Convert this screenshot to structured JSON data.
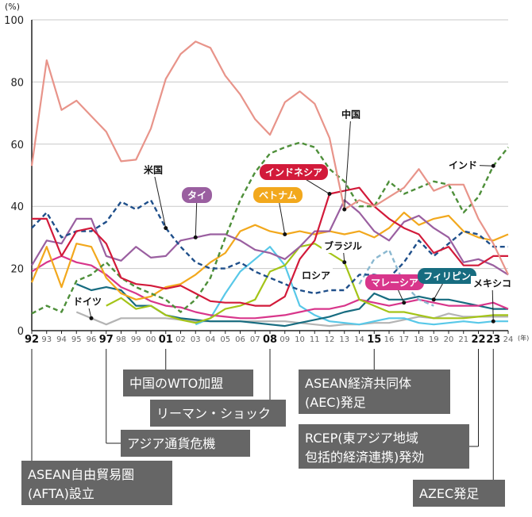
{
  "chart_data": {
    "type": "line",
    "title": "",
    "unit_label": "(%)",
    "year_suffix": "(年)",
    "ylim": [
      0,
      100
    ],
    "yticks": [
      "0",
      "20",
      "40",
      "60",
      "80",
      "100"
    ],
    "yticks_values": [
      0,
      20,
      40,
      60,
      80,
      100
    ],
    "x": [
      "92",
      "93",
      "94",
      "95",
      "96",
      "97",
      "98",
      "99",
      "00",
      "01",
      "02",
      "03",
      "04",
      "05",
      "06",
      "07",
      "08",
      "09",
      "10",
      "11",
      "12",
      "13",
      "14",
      "15",
      "16",
      "17",
      "18",
      "19",
      "20",
      "21",
      "22",
      "23",
      "24"
    ],
    "x_bold": [
      "92",
      "97",
      "01",
      "08",
      "15",
      "22",
      "23"
    ],
    "series": [
      {
        "name": "中国",
        "color": "#e8948a",
        "dash": "solid",
        "label_style": "plain",
        "values": [
          53,
          87,
          71,
          74,
          69,
          64,
          54.5,
          55,
          65,
          81,
          89,
          93,
          91,
          82,
          76,
          68,
          63,
          73.5,
          77,
          73,
          62,
          39,
          42,
          40,
          43,
          46,
          52,
          45,
          47,
          47,
          36,
          28,
          18
        ]
      },
      {
        "name": "米国",
        "color": "#1f4f8a",
        "dash": "dash",
        "label_style": "plain",
        "values": [
          33,
          38,
          30,
          32,
          32,
          35,
          41.5,
          39,
          42,
          33,
          27,
          22,
          20,
          20,
          22,
          19,
          17,
          15,
          13,
          12,
          13,
          13,
          18,
          18,
          17,
          22,
          29,
          24,
          28,
          32,
          31,
          27,
          27
        ]
      },
      {
        "name": "インド",
        "color": "#4e8f3a",
        "dash": "dash",
        "label_style": "plain",
        "values": [
          5.5,
          8,
          6,
          16,
          18,
          22,
          17,
          14,
          12,
          10,
          6,
          10,
          17,
          30,
          42,
          51,
          57,
          59,
          60.5,
          59,
          52,
          48,
          40,
          40,
          48,
          44,
          46,
          48,
          47,
          38,
          43,
          53,
          59
        ]
      },
      {
        "name": "タイ",
        "color": "#9a5fa0",
        "dash": "solid",
        "label_style": "box",
        "values": [
          21,
          29,
          28,
          36,
          36,
          24,
          22.5,
          27,
          23.5,
          24,
          29,
          30,
          31,
          31,
          29,
          26,
          25,
          23,
          27,
          32,
          32,
          42,
          38,
          32,
          29,
          35,
          37,
          33,
          30,
          22,
          23,
          21,
          18
        ]
      },
      {
        "name": "ベトナム",
        "color": "#f2a81d",
        "dash": "solid",
        "label_style": "box",
        "values": [
          15.5,
          27,
          14,
          28,
          27,
          17,
          12,
          10,
          11,
          14,
          15,
          18,
          22,
          25,
          32,
          34,
          32,
          31,
          32,
          31,
          32,
          31,
          32,
          30,
          33,
          38,
          34,
          36,
          37,
          32,
          30,
          29,
          31
        ]
      },
      {
        "name": "インドネシア",
        "color": "#d21a3a",
        "dash": "solid",
        "label_style": "box",
        "values": [
          36,
          36,
          24,
          32,
          33,
          28,
          17,
          15,
          14.5,
          13.5,
          14.5,
          12,
          9.5,
          9,
          9,
          8,
          8,
          11,
          23,
          29,
          44,
          45,
          46,
          40,
          36,
          33,
          31,
          25,
          27,
          21,
          21,
          24,
          24
        ]
      },
      {
        "name": "ブラジル",
        "color": "#a4c418",
        "dash": "solid",
        "label_style": "plain",
        "values": [
          null,
          null,
          null,
          null,
          null,
          8,
          10.5,
          7,
          8,
          5,
          3.5,
          2.5,
          4,
          7,
          8,
          10,
          19,
          21,
          27,
          28,
          25,
          22,
          10,
          8,
          6,
          6,
          5,
          4,
          4,
          4,
          4.5,
          5,
          5
        ]
      },
      {
        "name": "ロシア",
        "color": "#8ab8d0",
        "dash": "dash",
        "label_style": "plain",
        "values": [
          null,
          null,
          null,
          null,
          null,
          null,
          null,
          null,
          null,
          null,
          null,
          null,
          null,
          null,
          null,
          null,
          null,
          null,
          null,
          null,
          null,
          null,
          15,
          23,
          26,
          15,
          10,
          8,
          null,
          null,
          null,
          null,
          null
        ]
      },
      {
        "name": "マレーシア",
        "color": "#d8368b",
        "dash": "solid",
        "label_style": "box",
        "values": [
          19,
          22,
          24,
          22,
          21,
          18,
          14,
          12,
          9.5,
          8,
          7.5,
          6,
          5,
          4.5,
          4,
          4,
          4.5,
          5,
          6,
          7,
          7,
          8,
          10,
          9,
          8,
          9,
          10,
          9,
          8,
          8,
          8,
          9,
          7
        ]
      },
      {
        "name": "フィリピン",
        "color": "#176c80",
        "dash": "solid",
        "label_style": "box",
        "values": [
          null,
          null,
          null,
          15,
          13,
          14,
          13,
          8,
          8,
          5,
          4,
          3.5,
          3,
          3,
          3,
          2.5,
          2,
          1.5,
          2.5,
          3.5,
          4.5,
          6,
          7,
          12,
          10,
          10,
          11,
          10,
          10,
          9,
          8,
          7,
          7
        ]
      },
      {
        "name": "メキシコ",
        "color": "#58c8e8",
        "dash": "solid",
        "label_style": "plain",
        "values": [
          null,
          null,
          null,
          null,
          null,
          null,
          null,
          null,
          null,
          null,
          null,
          2,
          4,
          12,
          19,
          23,
          27,
          21,
          8,
          5,
          3,
          2.5,
          2,
          3,
          4,
          4,
          2.5,
          2,
          2.5,
          3,
          2.5,
          3,
          3
        ]
      },
      {
        "name": "ドイツ",
        "color": "#b4b4b4",
        "dash": "solid",
        "label_style": "plain",
        "values": [
          null,
          null,
          null,
          6,
          4,
          2,
          4,
          4,
          4,
          4,
          3.5,
          3,
          3,
          3,
          3,
          3,
          3,
          3,
          2.5,
          2,
          1.5,
          2,
          2,
          2.5,
          2.5,
          3.5,
          4.5,
          4,
          5.5,
          4.5,
          4.5,
          4.5,
          4.5
        ]
      }
    ],
    "events": [
      {
        "label_lines": [
          "中国のWTO加盟"
        ],
        "year": "01"
      },
      {
        "label_lines": [
          "リーマン・ショック"
        ],
        "year": "08"
      },
      {
        "label_lines": [
          "アジア通貨危機"
        ],
        "year": "97"
      },
      {
        "label_lines": [
          "ASEAN自由貿易圏",
          "(AFTA)設立"
        ],
        "year": "92"
      },
      {
        "label_lines": [
          "ASEAN経済共同体",
          "(AEC)発足"
        ],
        "year": "15"
      },
      {
        "label_lines": [
          "RCEP(東アジア地域",
          "包括的経済連携)発効"
        ],
        "year": "22"
      },
      {
        "label_lines": [
          "AZEC発足"
        ],
        "year": "23"
      }
    ]
  }
}
